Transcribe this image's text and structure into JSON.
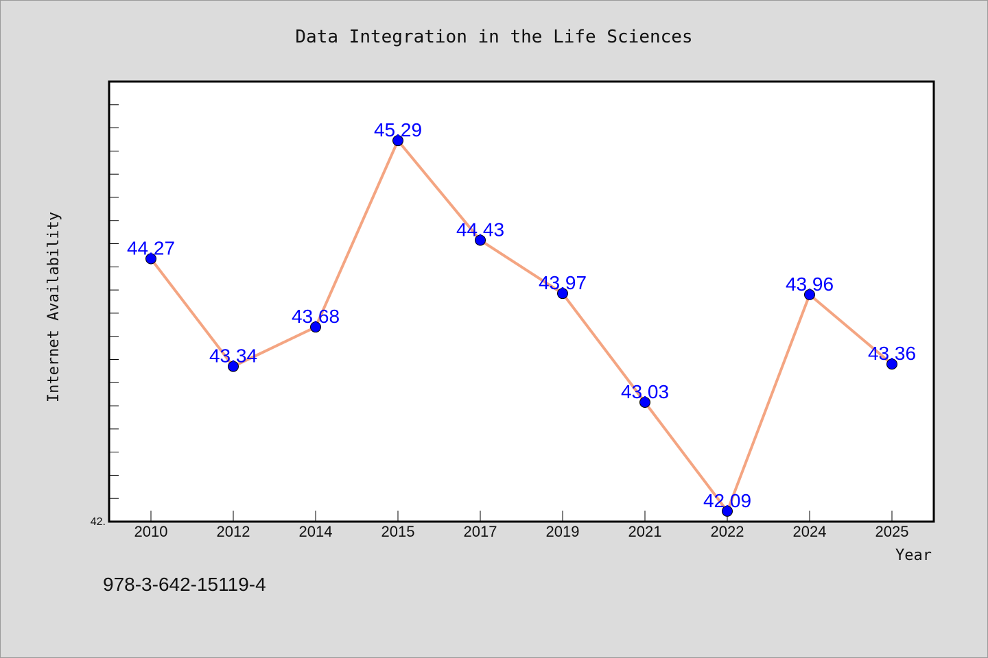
{
  "chart_data": {
    "type": "line",
    "title": "Data Integration in the Life Sciences",
    "xlabel": "Year",
    "ylabel": "Internet Availability",
    "categories": [
      "2010",
      "2012",
      "2014",
      "2015",
      "2017",
      "2019",
      "2021",
      "2022",
      "2024",
      "2025"
    ],
    "series": [
      {
        "values": [
          44.27,
          43.34,
          43.68,
          45.29,
          44.43,
          43.97,
          43.03,
          42.09,
          43.96,
          43.36
        ],
        "data_labels": [
          "44.27",
          "43.34",
          "43.68",
          "45.29",
          "44.43",
          "43.97",
          "43.03",
          "42.09",
          "43.96",
          "43.36"
        ],
        "line_color": "#f4a582",
        "marker_color": "#0000ff",
        "label_color": "#0000ff"
      }
    ],
    "ylim": [
      42,
      45.8
    ],
    "y_tick_labels": [
      "42."
    ],
    "grid": false,
    "legend": "none"
  },
  "footer": {
    "isbn": "978-3-642-15119-4"
  },
  "colors": {
    "background": "#dcdcdc",
    "plot_background": "#ffffff",
    "line": "#f4a582",
    "marker": "#0000ff"
  }
}
